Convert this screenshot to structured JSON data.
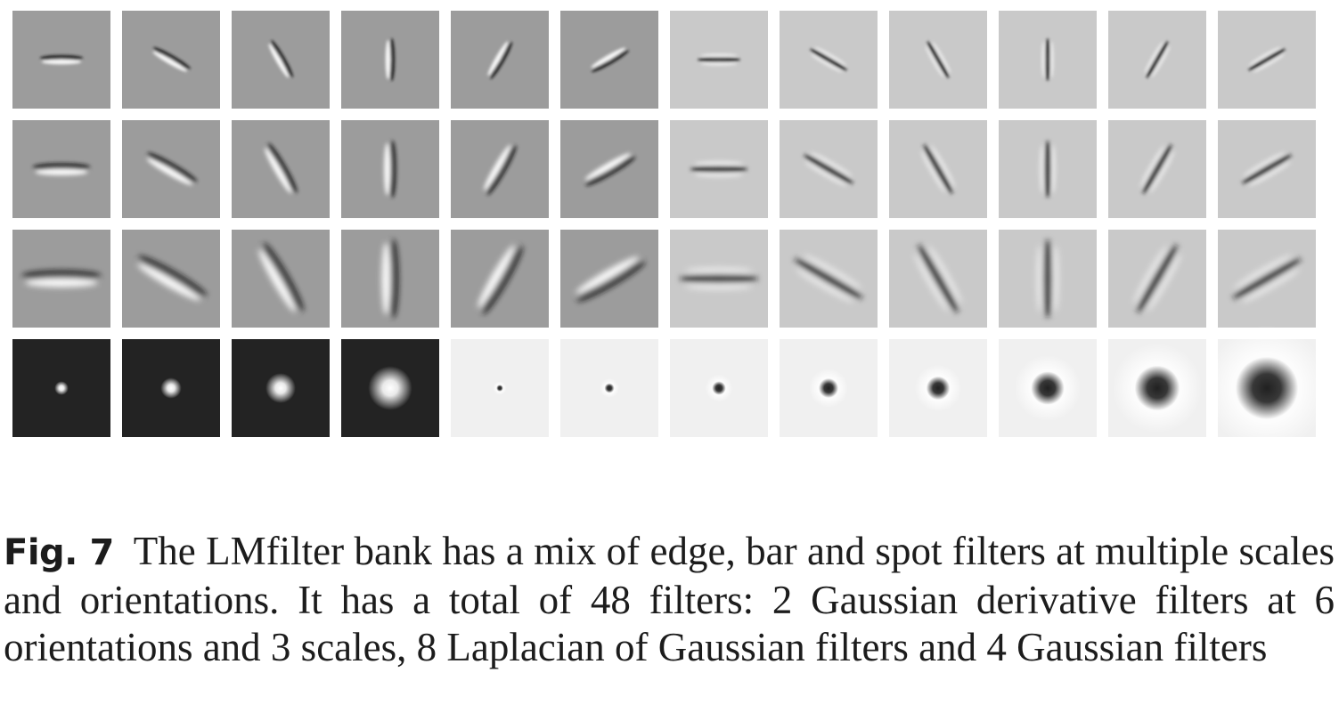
{
  "figure": {
    "label": "Fig. 7",
    "caption": "The LMfilter bank has a mix of edge, bar and spot filters at multiple scales and orientations. It has a total of 48 filters: 2 Gaussian derivative filters at 6 orientations and 3 scales, 8 Laplacian of Gaussian filters and 4 Gaussian filters"
  },
  "filter_bank": {
    "rows": 4,
    "cols": 12,
    "orientations_deg": [
      0,
      30,
      60,
      90,
      120,
      150
    ],
    "scale_rows": [
      1,
      2,
      3
    ],
    "colors": {
      "edge_background": "#9c9c9c",
      "bar_background": "#c9c9c9",
      "gaussian_background": "#232323",
      "log_background": "#f0f0f0",
      "dark": "#151515",
      "light": "#ffffff"
    }
  }
}
